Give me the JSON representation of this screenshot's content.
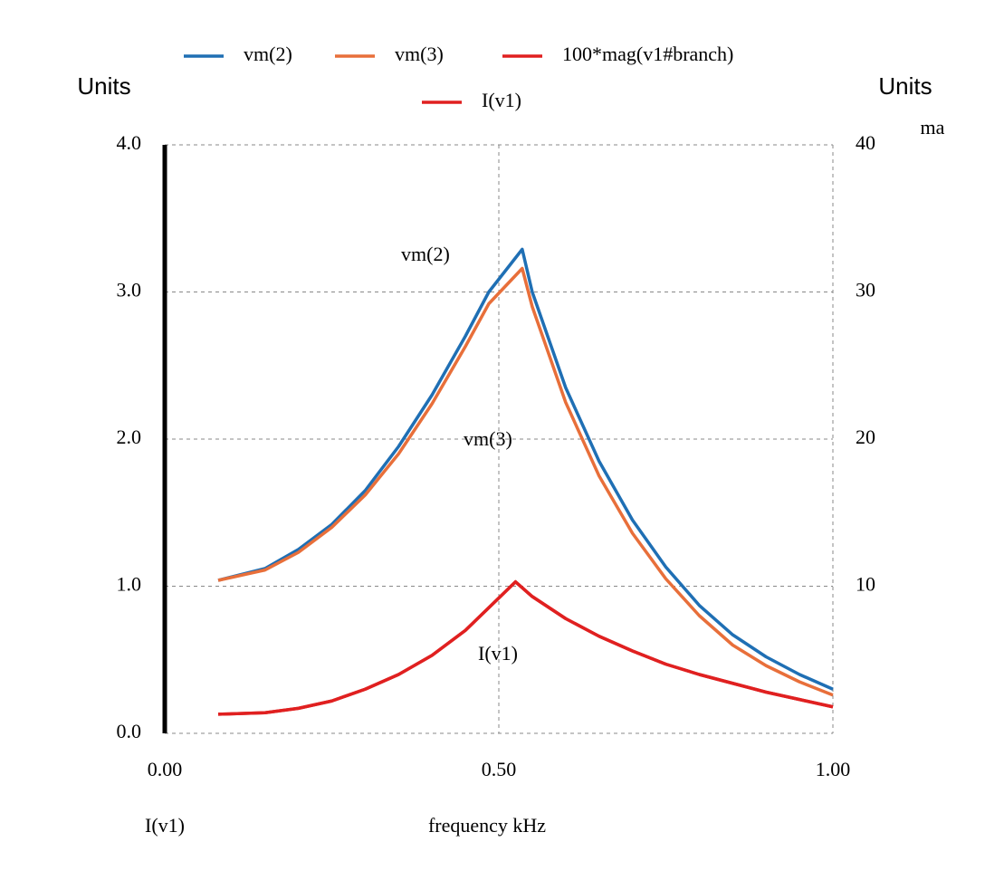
{
  "chart_data": {
    "type": "line",
    "x_label": "frequency kHz",
    "y_label": "Units",
    "y2_label": "Units",
    "y2_unit": "ma",
    "bottom_label": "I(v1)",
    "xlim": [
      0,
      1
    ],
    "xticks": [
      {
        "value": 0,
        "label": "0.00"
      },
      {
        "value": 0.5,
        "label": "0.50"
      },
      {
        "value": 1,
        "label": "1.00"
      }
    ],
    "ylim": [
      0,
      4
    ],
    "yticks": [
      {
        "value": 0,
        "label": "0.0"
      },
      {
        "value": 1,
        "label": "1.0"
      },
      {
        "value": 2,
        "label": "2.0"
      },
      {
        "value": 3,
        "label": "3.0"
      },
      {
        "value": 4,
        "label": "4.0"
      }
    ],
    "y2lim": [
      0,
      40
    ],
    "y2ticks": [
      10,
      20,
      30,
      40
    ],
    "grid": true,
    "series": [
      {
        "name": "vm(2)",
        "color": "#1f6fb4",
        "x": [
          0.08,
          0.15,
          0.2,
          0.25,
          0.3,
          0.35,
          0.4,
          0.45,
          0.485,
          0.535,
          0.55,
          0.6,
          0.65,
          0.7,
          0.75,
          0.8,
          0.85,
          0.9,
          0.95,
          1.0
        ],
        "values": [
          1.04,
          1.12,
          1.25,
          1.42,
          1.65,
          1.95,
          2.3,
          2.7,
          3.0,
          3.29,
          3.0,
          2.35,
          1.85,
          1.45,
          1.13,
          0.87,
          0.67,
          0.52,
          0.4,
          0.3
        ]
      },
      {
        "name": "vm(3)",
        "color": "#e86f3a",
        "x": [
          0.08,
          0.15,
          0.2,
          0.25,
          0.3,
          0.35,
          0.4,
          0.45,
          0.485,
          0.535,
          0.55,
          0.6,
          0.65,
          0.7,
          0.75,
          0.8,
          0.85,
          0.9,
          0.95,
          1.0
        ],
        "values": [
          1.04,
          1.11,
          1.23,
          1.4,
          1.62,
          1.9,
          2.24,
          2.63,
          2.92,
          3.16,
          2.9,
          2.25,
          1.75,
          1.36,
          1.05,
          0.8,
          0.6,
          0.46,
          0.35,
          0.26
        ]
      },
      {
        "name": "100*mag(v1#branch)",
        "color": "#e02020",
        "x": [
          0.08,
          0.15,
          0.2,
          0.25,
          0.3,
          0.35,
          0.4,
          0.45,
          0.5,
          0.525,
          0.55,
          0.6,
          0.65,
          0.7,
          0.75,
          0.8,
          0.85,
          0.9,
          0.95,
          1.0
        ],
        "values": [
          0.13,
          0.14,
          0.17,
          0.22,
          0.3,
          0.4,
          0.53,
          0.7,
          0.92,
          1.03,
          0.93,
          0.78,
          0.66,
          0.56,
          0.47,
          0.4,
          0.34,
          0.28,
          0.23,
          0.18
        ]
      },
      {
        "name": "I(v1)",
        "color": "#e02020",
        "axis": "y2",
        "x": [
          0.08,
          0.15,
          0.2,
          0.25,
          0.3,
          0.35,
          0.4,
          0.45,
          0.5,
          0.525,
          0.55,
          0.6,
          0.65,
          0.7,
          0.75,
          0.8,
          0.85,
          0.9,
          0.95,
          1.0
        ],
        "values": [
          1.3,
          1.4,
          1.7,
          2.2,
          3.0,
          4.0,
          5.3,
          7.0,
          9.2,
          10.3,
          9.3,
          7.8,
          6.6,
          5.6,
          4.7,
          4.0,
          3.4,
          2.8,
          2.3,
          1.8
        ]
      }
    ],
    "annotations": [
      {
        "text": "vm(2)",
        "color": "#000000"
      },
      {
        "text": "vm(3)",
        "color": "#000000"
      },
      {
        "text": "I(v1)",
        "color": "#e02020"
      }
    ]
  }
}
